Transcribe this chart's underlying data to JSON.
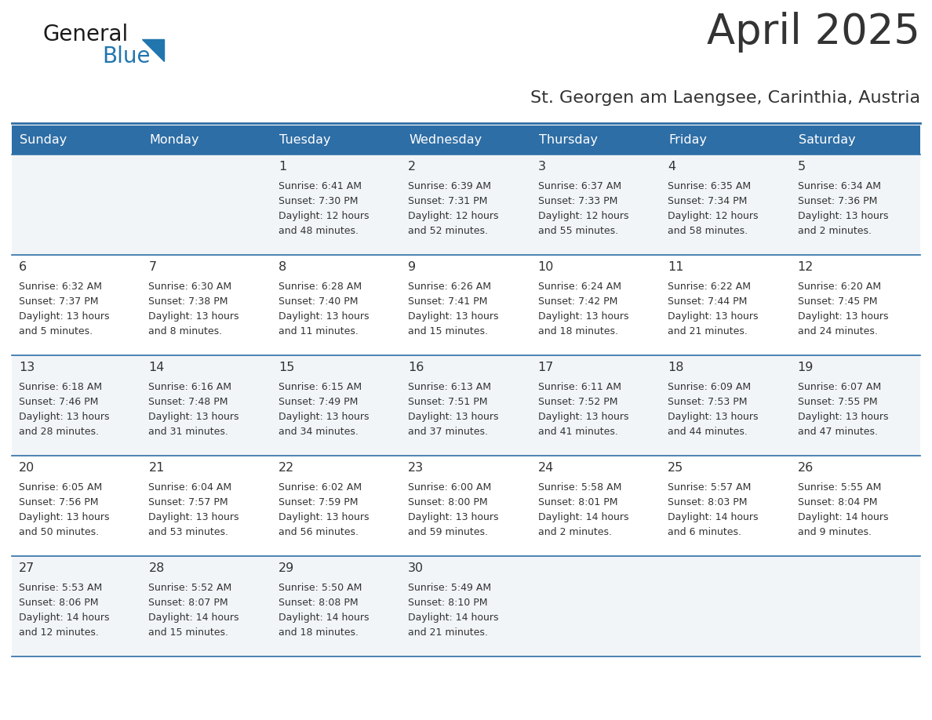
{
  "title": "April 2025",
  "subtitle": "St. Georgen am Laengsee, Carinthia, Austria",
  "header_bg_color": "#2E6EA6",
  "header_text_color": "#FFFFFF",
  "header_days": [
    "Sunday",
    "Monday",
    "Tuesday",
    "Wednesday",
    "Thursday",
    "Friday",
    "Saturday"
  ],
  "divider_color": "#2E6EA6",
  "text_color": "#333333",
  "logo_general_color": "#1a1a1a",
  "logo_blue_color": "#2176AE",
  "bg_even": "#F2F5F8",
  "bg_odd": "#FFFFFF",
  "days": [
    {
      "day": 1,
      "col": 2,
      "row": 0,
      "sunrise": "6:41 AM",
      "sunset": "7:30 PM",
      "daylight": "12 hours and 48 minutes."
    },
    {
      "day": 2,
      "col": 3,
      "row": 0,
      "sunrise": "6:39 AM",
      "sunset": "7:31 PM",
      "daylight": "12 hours and 52 minutes."
    },
    {
      "day": 3,
      "col": 4,
      "row": 0,
      "sunrise": "6:37 AM",
      "sunset": "7:33 PM",
      "daylight": "12 hours and 55 minutes."
    },
    {
      "day": 4,
      "col": 5,
      "row": 0,
      "sunrise": "6:35 AM",
      "sunset": "7:34 PM",
      "daylight": "12 hours and 58 minutes."
    },
    {
      "day": 5,
      "col": 6,
      "row": 0,
      "sunrise": "6:34 AM",
      "sunset": "7:36 PM",
      "daylight": "13 hours and 2 minutes."
    },
    {
      "day": 6,
      "col": 0,
      "row": 1,
      "sunrise": "6:32 AM",
      "sunset": "7:37 PM",
      "daylight": "13 hours and 5 minutes."
    },
    {
      "day": 7,
      "col": 1,
      "row": 1,
      "sunrise": "6:30 AM",
      "sunset": "7:38 PM",
      "daylight": "13 hours and 8 minutes."
    },
    {
      "day": 8,
      "col": 2,
      "row": 1,
      "sunrise": "6:28 AM",
      "sunset": "7:40 PM",
      "daylight": "13 hours and 11 minutes."
    },
    {
      "day": 9,
      "col": 3,
      "row": 1,
      "sunrise": "6:26 AM",
      "sunset": "7:41 PM",
      "daylight": "13 hours and 15 minutes."
    },
    {
      "day": 10,
      "col": 4,
      "row": 1,
      "sunrise": "6:24 AM",
      "sunset": "7:42 PM",
      "daylight": "13 hours and 18 minutes."
    },
    {
      "day": 11,
      "col": 5,
      "row": 1,
      "sunrise": "6:22 AM",
      "sunset": "7:44 PM",
      "daylight": "13 hours and 21 minutes."
    },
    {
      "day": 12,
      "col": 6,
      "row": 1,
      "sunrise": "6:20 AM",
      "sunset": "7:45 PM",
      "daylight": "13 hours and 24 minutes."
    },
    {
      "day": 13,
      "col": 0,
      "row": 2,
      "sunrise": "6:18 AM",
      "sunset": "7:46 PM",
      "daylight": "13 hours and 28 minutes."
    },
    {
      "day": 14,
      "col": 1,
      "row": 2,
      "sunrise": "6:16 AM",
      "sunset": "7:48 PM",
      "daylight": "13 hours and 31 minutes."
    },
    {
      "day": 15,
      "col": 2,
      "row": 2,
      "sunrise": "6:15 AM",
      "sunset": "7:49 PM",
      "daylight": "13 hours and 34 minutes."
    },
    {
      "day": 16,
      "col": 3,
      "row": 2,
      "sunrise": "6:13 AM",
      "sunset": "7:51 PM",
      "daylight": "13 hours and 37 minutes."
    },
    {
      "day": 17,
      "col": 4,
      "row": 2,
      "sunrise": "6:11 AM",
      "sunset": "7:52 PM",
      "daylight": "13 hours and 41 minutes."
    },
    {
      "day": 18,
      "col": 5,
      "row": 2,
      "sunrise": "6:09 AM",
      "sunset": "7:53 PM",
      "daylight": "13 hours and 44 minutes."
    },
    {
      "day": 19,
      "col": 6,
      "row": 2,
      "sunrise": "6:07 AM",
      "sunset": "7:55 PM",
      "daylight": "13 hours and 47 minutes."
    },
    {
      "day": 20,
      "col": 0,
      "row": 3,
      "sunrise": "6:05 AM",
      "sunset": "7:56 PM",
      "daylight": "13 hours and 50 minutes."
    },
    {
      "day": 21,
      "col": 1,
      "row": 3,
      "sunrise": "6:04 AM",
      "sunset": "7:57 PM",
      "daylight": "13 hours and 53 minutes."
    },
    {
      "day": 22,
      "col": 2,
      "row": 3,
      "sunrise": "6:02 AM",
      "sunset": "7:59 PM",
      "daylight": "13 hours and 56 minutes."
    },
    {
      "day": 23,
      "col": 3,
      "row": 3,
      "sunrise": "6:00 AM",
      "sunset": "8:00 PM",
      "daylight": "13 hours and 59 minutes."
    },
    {
      "day": 24,
      "col": 4,
      "row": 3,
      "sunrise": "5:58 AM",
      "sunset": "8:01 PM",
      "daylight": "14 hours and 2 minutes."
    },
    {
      "day": 25,
      "col": 5,
      "row": 3,
      "sunrise": "5:57 AM",
      "sunset": "8:03 PM",
      "daylight": "14 hours and 6 minutes."
    },
    {
      "day": 26,
      "col": 6,
      "row": 3,
      "sunrise": "5:55 AM",
      "sunset": "8:04 PM",
      "daylight": "14 hours and 9 minutes."
    },
    {
      "day": 27,
      "col": 0,
      "row": 4,
      "sunrise": "5:53 AM",
      "sunset": "8:06 PM",
      "daylight": "14 hours and 12 minutes."
    },
    {
      "day": 28,
      "col": 1,
      "row": 4,
      "sunrise": "5:52 AM",
      "sunset": "8:07 PM",
      "daylight": "14 hours and 15 minutes."
    },
    {
      "day": 29,
      "col": 2,
      "row": 4,
      "sunrise": "5:50 AM",
      "sunset": "8:08 PM",
      "daylight": "14 hours and 18 minutes."
    },
    {
      "day": 30,
      "col": 3,
      "row": 4,
      "sunrise": "5:49 AM",
      "sunset": "8:10 PM",
      "daylight": "14 hours and 21 minutes."
    }
  ]
}
